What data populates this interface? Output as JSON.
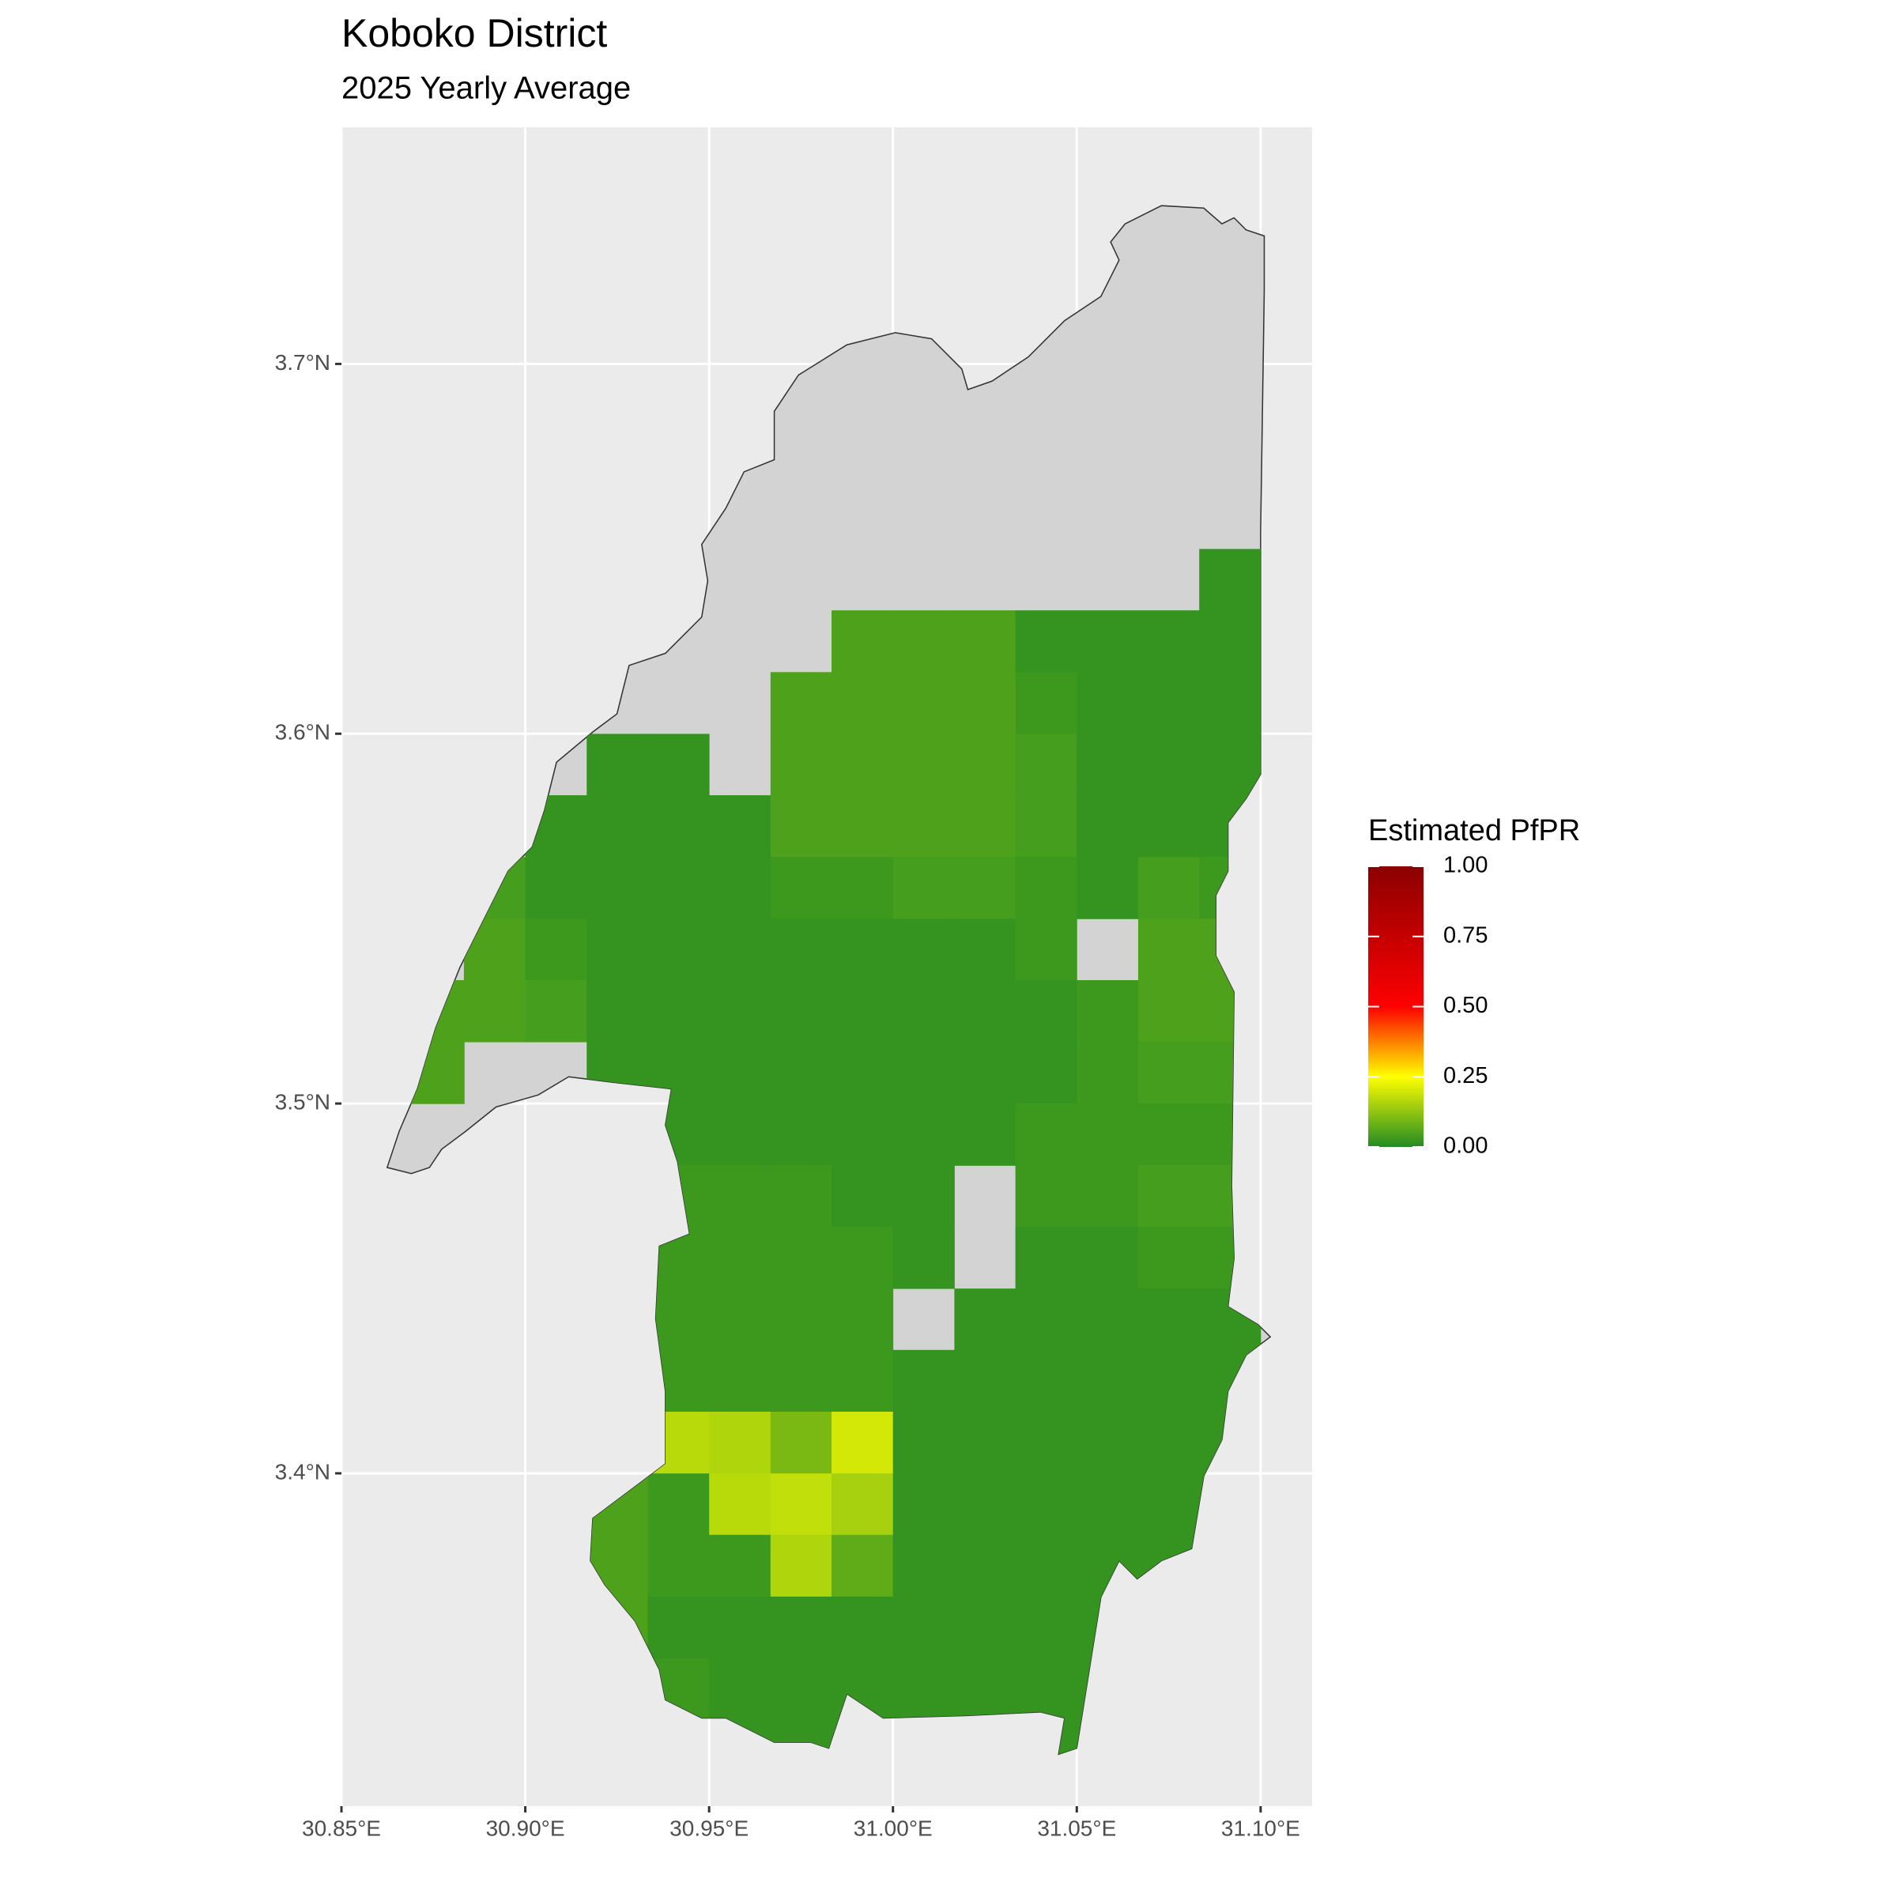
{
  "chart_data": {
    "type": "raster-map",
    "title": "Koboko District",
    "subtitle": "2025 Yearly Average",
    "legend_title": "Estimated PfPR",
    "xlim": [
      30.85,
      31.114
    ],
    "ylim": [
      3.31,
      3.764
    ],
    "xticks": [
      {
        "value": 30.85,
        "label": "30.85°E"
      },
      {
        "value": 30.9,
        "label": "30.90°E"
      },
      {
        "value": 30.95,
        "label": "30.95°E"
      },
      {
        "value": 31.0,
        "label": "31.00°E"
      },
      {
        "value": 31.05,
        "label": "31.05°E"
      },
      {
        "value": 31.1,
        "label": "31.10°E"
      }
    ],
    "yticks": [
      {
        "value": 3.4,
        "label": "3.4°N"
      },
      {
        "value": 3.5,
        "label": "3.5°N"
      },
      {
        "value": 3.6,
        "label": "3.6°N"
      },
      {
        "value": 3.7,
        "label": "3.7°N"
      }
    ],
    "grid": true,
    "legend_ticks": [
      {
        "value": 0,
        "label": "0.00"
      },
      {
        "value": 0.25,
        "label": "0.25"
      },
      {
        "value": 0.5,
        "label": "0.50"
      },
      {
        "value": 0.75,
        "label": "0.75"
      },
      {
        "value": 1,
        "label": "1.00"
      }
    ],
    "colorscale": [
      {
        "value": 0,
        "color": "#228B22"
      },
      {
        "value": 0.25,
        "color": "#FFFF00"
      },
      {
        "value": 0.5,
        "color": "#FF0000"
      },
      {
        "value": 1,
        "color": "#8B0000"
      }
    ],
    "rows": [
      {
        "lat": 3.6333,
        "lons": [
          31.0833
        ],
        "values": [
          0.02
        ]
      },
      {
        "lat": 3.6167,
        "lons": [
          30.9833,
          31.0,
          31.0167,
          31.0333,
          31.05,
          31.0667,
          31.0833
        ],
        "values": [
          0.05,
          0.05,
          0.05,
          0.02,
          0.02,
          0.02,
          0.02
        ]
      },
      {
        "lat": 3.6,
        "lons": [
          30.9667,
          30.9833,
          31.0,
          31.0167,
          31.0333,
          31.05,
          31.0667,
          31.0833
        ],
        "values": [
          0.05,
          0.05,
          0.05,
          0.05,
          0.03,
          0.02,
          0.02,
          0.02
        ]
      },
      {
        "lat": 3.5833,
        "lons": [
          30.9167,
          30.9333,
          30.9667,
          30.9833,
          31.0,
          31.0167,
          31.0333,
          31.05,
          31.0667,
          31.0833
        ],
        "values": [
          0.02,
          0.02,
          0.05,
          0.05,
          0.05,
          0.05,
          0.04,
          0.02,
          0.02,
          0.02
        ]
      },
      {
        "lat": 3.5667,
        "lons": [
          30.9,
          30.9167,
          30.9333,
          30.95,
          30.9667,
          30.9833,
          31.0,
          31.0167,
          31.0333,
          31.05,
          31.0667,
          31.0833
        ],
        "values": [
          0.02,
          0.02,
          0.02,
          0.02,
          0.05,
          0.05,
          0.05,
          0.05,
          0.04,
          0.02,
          0.02,
          0.02
        ]
      },
      {
        "lat": 3.55,
        "lons": [
          30.8833,
          30.9,
          30.9167,
          30.9333,
          30.95,
          30.9667,
          30.9833,
          31.0,
          31.0167,
          31.0333,
          31.05,
          31.0667,
          31.0833
        ],
        "values": [
          0.04,
          0.02,
          0.02,
          0.02,
          0.02,
          0.03,
          0.03,
          0.04,
          0.04,
          0.03,
          0.02,
          0.04,
          0.03
        ]
      },
      {
        "lat": 3.5333,
        "lons": [
          30.8833,
          30.9,
          30.9167,
          30.9333,
          30.95,
          30.9667,
          30.9833,
          31.0,
          31.0167,
          31.0333,
          31.0667,
          31.0833
        ],
        "values": [
          0.05,
          0.03,
          0.02,
          0.02,
          0.02,
          0.02,
          0.02,
          0.02,
          0.02,
          0.03,
          0.05,
          0.05
        ]
      },
      {
        "lat": 3.5167,
        "lons": [
          30.8667,
          30.8833,
          30.9,
          30.9167,
          30.9333,
          30.95,
          30.9667,
          30.9833,
          31.0,
          31.0167,
          31.0333,
          31.05,
          31.0667,
          31.0833
        ],
        "values": [
          0.05,
          0.05,
          0.04,
          0.02,
          0.02,
          0.02,
          0.02,
          0.02,
          0.02,
          0.02,
          0.02,
          0.03,
          0.05,
          0.05
        ]
      },
      {
        "lat": 3.5,
        "lons": [
          30.8667,
          30.9167,
          30.9333,
          30.95,
          30.9667,
          30.9833,
          31.0,
          31.0167,
          31.0333,
          31.05,
          31.0667,
          31.0833
        ],
        "values": [
          0.05,
          0.02,
          0.02,
          0.02,
          0.02,
          0.02,
          0.02,
          0.02,
          0.02,
          0.03,
          0.04,
          0.04
        ]
      },
      {
        "lat": 3.4833,
        "lons": [
          30.9333,
          30.95,
          30.9667,
          30.9833,
          31.0,
          31.0167,
          31.0333,
          31.05,
          31.0667,
          31.0833
        ],
        "values": [
          0.02,
          0.02,
          0.02,
          0.02,
          0.02,
          0.02,
          0.03,
          0.03,
          0.03,
          0.03
        ]
      },
      {
        "lat": 3.4667,
        "lons": [
          30.9333,
          30.95,
          30.9667,
          30.9833,
          31.0,
          31.0333,
          31.05,
          31.0667,
          31.0833
        ],
        "values": [
          0.03,
          0.03,
          0.03,
          0.02,
          0.02,
          0.03,
          0.03,
          0.04,
          0.04
        ]
      },
      {
        "lat": 3.45,
        "lons": [
          30.9333,
          30.95,
          30.9667,
          30.9833,
          31.0,
          31.0333,
          31.05,
          31.0667,
          31.0833
        ],
        "values": [
          0.03,
          0.03,
          0.03,
          0.03,
          0.02,
          0.02,
          0.02,
          0.03,
          0.03
        ]
      },
      {
        "lat": 3.4333,
        "lons": [
          30.9333,
          30.95,
          30.9667,
          30.9833,
          31.0167,
          31.0333,
          31.05,
          31.0667,
          31.0833
        ],
        "values": [
          0.03,
          0.03,
          0.03,
          0.03,
          0.02,
          0.02,
          0.02,
          0.02,
          0.02
        ]
      },
      {
        "lat": 3.4167,
        "lons": [
          30.9333,
          30.95,
          30.9667,
          30.9833,
          31.0,
          31.0167,
          31.0333,
          31.05,
          31.0667,
          31.0833
        ],
        "values": [
          0.03,
          0.03,
          0.03,
          0.03,
          0.02,
          0.02,
          0.02,
          0.02,
          0.02,
          0.02
        ]
      },
      {
        "lat": 3.4,
        "lons": [
          30.9333,
          30.95,
          30.9667,
          30.9833,
          31.0,
          31.0167,
          31.0333,
          31.05,
          31.0667,
          31.0833
        ],
        "values": [
          0.17,
          0.16,
          0.1,
          0.2,
          0.02,
          0.02,
          0.02,
          0.02,
          0.02,
          0.02
        ]
      },
      {
        "lat": 3.3833,
        "lons": [
          30.9167,
          30.9333,
          30.95,
          30.9667,
          30.9833,
          31.0,
          31.0167,
          31.0333,
          31.05,
          31.0667,
          31.0833
        ],
        "values": [
          0.05,
          0.03,
          0.17,
          0.18,
          0.15,
          0.02,
          0.02,
          0.02,
          0.02,
          0.02,
          0.02
        ]
      },
      {
        "lat": 3.3667,
        "lons": [
          30.9167,
          30.9333,
          30.95,
          30.9667,
          30.9833,
          31.0,
          31.0167,
          31.0333,
          31.05,
          31.0667
        ],
        "values": [
          0.05,
          0.03,
          0.03,
          0.16,
          0.07,
          0.02,
          0.02,
          0.02,
          0.02,
          0.02
        ]
      },
      {
        "lat": 3.35,
        "lons": [
          30.9167,
          30.9333,
          30.95,
          30.9667,
          30.9833,
          31.0,
          31.0167,
          31.0333,
          31.05
        ],
        "values": [
          0.05,
          0.02,
          0.02,
          0.02,
          0.02,
          0.02,
          0.02,
          0.02,
          0.02
        ]
      },
      {
        "lat": 3.3333,
        "lons": [
          30.9333,
          30.95,
          30.9667,
          30.9833,
          31.0,
          31.0167,
          31.0333,
          31.05
        ],
        "values": [
          0.03,
          0.02,
          0.02,
          0.02,
          0.02,
          0.02,
          0.02,
          0.02
        ]
      },
      {
        "lat": 3.3167,
        "lons": [
          30.9333,
          30.95,
          30.9667,
          30.9833,
          31.0,
          31.0167,
          31.0333,
          31.05
        ],
        "values": [
          0.05,
          0.02,
          0.02,
          0.02,
          0.02,
          0.02,
          0.02,
          0.02
        ]
      }
    ]
  }
}
